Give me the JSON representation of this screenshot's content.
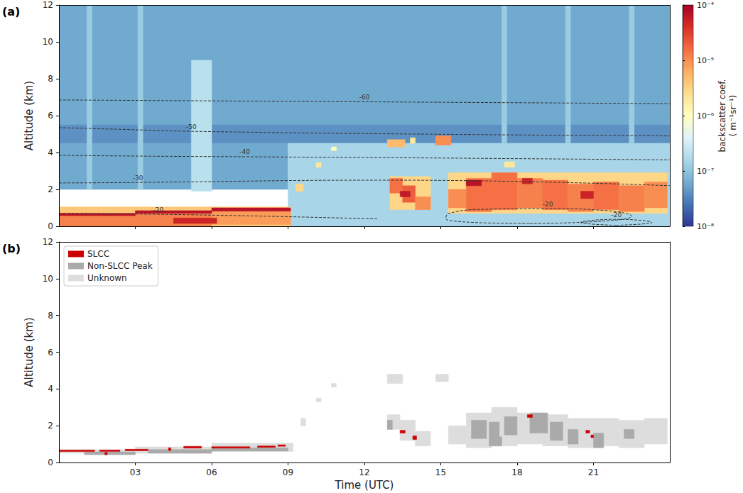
{
  "chart_data": [
    {
      "type": "heatmap",
      "panel_label": "(a)",
      "ylabel": "Altitude (km)",
      "xlim": [
        0,
        24
      ],
      "xticks": [
        {
          "value": 3,
          "label": "03"
        },
        {
          "value": 6,
          "label": "06"
        },
        {
          "value": 9,
          "label": "09"
        },
        {
          "value": 12,
          "label": "12"
        },
        {
          "value": 15,
          "label": "15"
        },
        {
          "value": 18,
          "label": "18"
        },
        {
          "value": 21,
          "label": "21"
        }
      ],
      "ylim": [
        0,
        12
      ],
      "yticks": [
        0,
        2,
        4,
        6,
        8,
        10,
        12
      ],
      "tick_labels": "y",
      "grid": false,
      "colorbar": {
        "label": "backscatter coef.\n( m⁻¹sr⁻¹)",
        "log": true,
        "range": [
          1e-08,
          0.0001
        ],
        "ticks": [
          {
            "value": 1e-08,
            "label": "10⁻⁸"
          },
          {
            "value": 1e-07,
            "label": "10⁻⁷"
          },
          {
            "value": 1e-06,
            "label": "10⁻⁶"
          },
          {
            "value": 1e-05,
            "label": "10⁻⁵"
          },
          {
            "value": 0.0001,
            "label": "10⁻⁴"
          }
        ]
      },
      "cells": [
        [
          0,
          24,
          5.5,
          12,
          6e-08
        ],
        [
          0,
          24,
          4.5,
          5.5,
          4e-08
        ],
        [
          0,
          9,
          2,
          4.5,
          6e-08
        ],
        [
          9,
          24,
          0,
          4.5,
          1.5e-07
        ],
        [
          1.1,
          1.3,
          2,
          12,
          1.2e-07
        ],
        [
          3.1,
          3.3,
          2,
          12,
          1.2e-07
        ],
        [
          5.2,
          6,
          1.9,
          9,
          2e-07
        ],
        [
          17.4,
          17.6,
          4.5,
          12,
          1.2e-07
        ],
        [
          19.9,
          20.1,
          4.5,
          12,
          1.2e-07
        ],
        [
          22.4,
          22.6,
          4.5,
          12,
          1.2e-07
        ],
        [
          0,
          9.1,
          0,
          1.05,
          4e-06
        ],
        [
          0,
          3,
          0,
          0.58,
          1.2e-05
        ],
        [
          3,
          6,
          0,
          0.7,
          1.2e-05
        ],
        [
          6,
          9.1,
          0.1,
          0.82,
          8e-06
        ],
        [
          0,
          3,
          0.58,
          0.7,
          7e-05
        ],
        [
          3,
          6,
          0.7,
          0.85,
          7e-05
        ],
        [
          6,
          9.1,
          0.82,
          1.0,
          7e-05
        ],
        [
          4.5,
          6.2,
          0.15,
          0.45,
          5e-05
        ],
        [
          9.3,
          9.6,
          1.9,
          2.3,
          3e-06
        ],
        [
          10.1,
          10.3,
          3.2,
          3.45,
          2e-06
        ],
        [
          10.7,
          10.9,
          4.1,
          4.3,
          1e-06
        ],
        [
          12.9,
          13.6,
          4.3,
          4.7,
          5e-06
        ],
        [
          13.8,
          14.0,
          4.5,
          4.8,
          2e-06
        ],
        [
          14.8,
          15.4,
          4.4,
          4.9,
          1e-05
        ],
        [
          17.5,
          17.9,
          3.2,
          3.5,
          2e-06
        ],
        [
          13,
          14.6,
          0.9,
          2.7,
          3e-06
        ],
        [
          13,
          13.5,
          1.8,
          2.6,
          1.5e-05
        ],
        [
          13.5,
          14,
          1.3,
          2.2,
          2e-05
        ],
        [
          14,
          14.6,
          0.9,
          1.6,
          1e-05
        ],
        [
          13.4,
          13.8,
          1.6,
          1.9,
          6e-05
        ],
        [
          15.3,
          23.9,
          0.7,
          2.9,
          3e-06
        ],
        [
          15.3,
          16,
          1.0,
          2.0,
          1e-05
        ],
        [
          16,
          17,
          0.8,
          2.6,
          1.5e-05
        ],
        [
          17,
          18,
          0.9,
          2.9,
          1.5e-05
        ],
        [
          18,
          19,
          1.0,
          2.6,
          1.2e-05
        ],
        [
          19,
          20,
          0.9,
          2.5,
          1.5e-05
        ],
        [
          20,
          21,
          0.8,
          2.3,
          1.2e-05
        ],
        [
          21,
          22,
          0.9,
          2.4,
          1.5e-05
        ],
        [
          22,
          23,
          0.8,
          2.2,
          1.2e-05
        ],
        [
          23,
          23.9,
          1.0,
          2.4,
          1e-05
        ],
        [
          16,
          16.6,
          2.2,
          2.5,
          7e-05
        ],
        [
          18.2,
          18.6,
          2.3,
          2.6,
          5e-05
        ],
        [
          20.5,
          21,
          1.5,
          1.9,
          5e-05
        ]
      ],
      "contours": [
        {
          "level": -60,
          "line_style": "dashed",
          "color": "#333333",
          "x": [
            0,
            6,
            12,
            18,
            24
          ],
          "y": [
            6.85,
            6.8,
            6.75,
            6.7,
            6.65
          ]
        },
        {
          "level": -50,
          "line_style": "dashed",
          "color": "#333333",
          "x": [
            0,
            2.6,
            5.2,
            14,
            24
          ],
          "y": [
            5.35,
            5.25,
            5.15,
            5.0,
            4.9
          ]
        },
        {
          "level": -40,
          "line_style": "dashed",
          "color": "#333333",
          "x": [
            0,
            3.6,
            7.3,
            15,
            24
          ],
          "y": [
            3.85,
            3.8,
            3.77,
            3.7,
            3.6
          ]
        },
        {
          "level": -30,
          "line_style": "dashed",
          "color": "#333333",
          "x": [
            0,
            1.5,
            3.1,
            13,
            24
          ],
          "y": [
            2.35,
            2.36,
            2.38,
            2.5,
            2.2
          ]
        },
        {
          "level": -20,
          "line_style": "dashed",
          "color": "#333333",
          "x": [
            0,
            2,
            3.9,
            8,
            12.5
          ],
          "y": [
            0.7,
            0.68,
            0.65,
            0.55,
            0.4
          ]
        },
        {
          "level": -20,
          "line_style": "dashed",
          "color": "#333333",
          "x": [
            18.5,
            21,
            22.5,
            21.5,
            19.2,
            17,
            15.3,
            15.2,
            18.5
          ],
          "y": [
            0.15,
            0.25,
            0.55,
            0.85,
            0.96,
            0.93,
            0.7,
            0.4,
            0.15
          ]
        },
        {
          "level": -20,
          "line_style": "dashed",
          "color": "#333333",
          "x": [
            21.9,
            23.3,
            21.9,
            20.5,
            21.9
          ],
          "y": [
            0.05,
            0.2,
            0.38,
            0.2,
            0.05
          ]
        }
      ]
    },
    {
      "type": "heatmap",
      "panel_label": "(b)",
      "xlabel": "Time (UTC)",
      "ylabel": "Altitude (km)",
      "xlim": [
        0,
        24
      ],
      "xticks": [
        {
          "value": 3,
          "label": "03"
        },
        {
          "value": 6,
          "label": "06"
        },
        {
          "value": 9,
          "label": "09"
        },
        {
          "value": 12,
          "label": "12"
        },
        {
          "value": 15,
          "label": "15"
        },
        {
          "value": 18,
          "label": "18"
        },
        {
          "value": 21,
          "label": "21"
        }
      ],
      "ylim": [
        0,
        12
      ],
      "yticks": [
        0,
        2,
        4,
        6,
        8,
        10,
        12
      ],
      "grid": false,
      "legend": "upper left",
      "series": [
        {
          "name": "SLCC",
          "color": "#cc0000",
          "cells": [
            [
              0,
              1.4,
              0.6,
              0.68
            ],
            [
              1.6,
              2.4,
              0.6,
              0.68
            ],
            [
              2.6,
              3.5,
              0.64,
              0.72
            ],
            [
              1.8,
              1.9,
              0.42,
              0.55
            ],
            [
              4.3,
              4.4,
              0.65,
              0.8
            ],
            [
              4.9,
              5.6,
              0.78,
              0.88
            ],
            [
              6.0,
              7.5,
              0.78,
              0.86
            ],
            [
              7.8,
              8.5,
              0.82,
              0.9
            ],
            [
              8.6,
              8.9,
              0.88,
              0.96
            ],
            [
              13.4,
              13.6,
              1.6,
              1.75
            ],
            [
              13.9,
              14.05,
              1.25,
              1.45
            ],
            [
              18.4,
              18.6,
              2.45,
              2.6
            ],
            [
              20.7,
              20.85,
              1.6,
              1.75
            ],
            [
              20.9,
              21.0,
              1.35,
              1.5
            ]
          ]
        },
        {
          "name": "Non-SLCC Peak",
          "color": "#aaaaaa",
          "cells": [
            [
              1,
              3,
              0.42,
              0.58
            ],
            [
              3.5,
              6,
              0.5,
              0.7
            ],
            [
              6,
              9,
              0.62,
              0.8
            ],
            [
              12.9,
              13.1,
              1.8,
              2.3
            ],
            [
              16.2,
              16.8,
              1.3,
              2.3
            ],
            [
              16.9,
              17.3,
              0.9,
              2.2
            ],
            [
              17.2,
              17.4,
              0.9,
              1.4
            ],
            [
              17.5,
              18.0,
              1.5,
              2.5
            ],
            [
              18.5,
              19.2,
              1.6,
              2.7
            ],
            [
              19.3,
              19.8,
              1.2,
              2.2
            ],
            [
              20.0,
              20.4,
              1.0,
              1.8
            ],
            [
              21,
              21.4,
              0.8,
              1.6
            ],
            [
              22.2,
              22.6,
              1.3,
              1.8
            ]
          ]
        },
        {
          "name": "Unknown",
          "color": "#dddddd",
          "cells": [
            [
              0,
              3,
              0.5,
              0.7
            ],
            [
              3,
              6,
              0.5,
              0.85
            ],
            [
              6,
              9.2,
              0.6,
              1.05
            ],
            [
              9.5,
              9.7,
              2.0,
              2.4
            ],
            [
              10.1,
              10.3,
              3.3,
              3.5
            ],
            [
              10.7,
              10.9,
              4.1,
              4.3
            ],
            [
              12.9,
              13.5,
              4.3,
              4.8
            ],
            [
              14.8,
              15.3,
              4.4,
              4.8
            ],
            [
              12.9,
              13.4,
              1.8,
              2.6
            ],
            [
              13.4,
              14,
              1.2,
              2.3
            ],
            [
              14,
              14.6,
              0.9,
              1.7
            ],
            [
              15.3,
              16,
              1,
              2
            ],
            [
              16,
              17,
              0.8,
              2.7
            ],
            [
              17,
              18,
              0.9,
              3.0
            ],
            [
              18,
              19,
              1,
              2.7
            ],
            [
              19,
              20,
              0.9,
              2.6
            ],
            [
              20,
              21,
              0.8,
              2.4
            ],
            [
              21,
              22,
              0.9,
              2.4
            ],
            [
              22,
              23,
              0.8,
              2.3
            ],
            [
              23,
              23.9,
              1,
              2.4
            ]
          ]
        }
      ]
    }
  ]
}
